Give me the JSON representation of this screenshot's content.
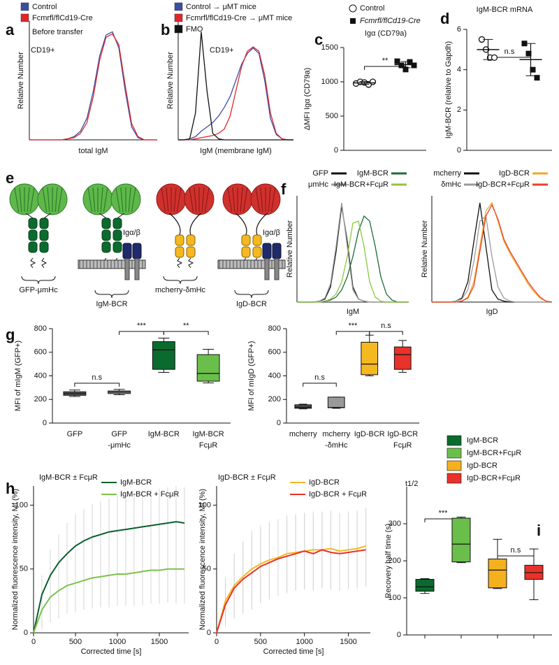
{
  "chart_data": [
    {
      "panel": "a",
      "type": "line",
      "xlabel": "total IgM",
      "ylabel": "Relative Number",
      "annotations": [
        "Before transfer",
        "CD19+"
      ],
      "xlim": [
        0,
        100
      ],
      "ylim": [
        0,
        110
      ],
      "x": [
        0,
        5,
        10,
        15,
        20,
        25,
        30,
        35,
        40,
        45,
        50,
        55,
        60,
        65,
        70,
        75,
        80,
        85,
        90,
        95,
        100
      ],
      "series": [
        {
          "name": "Control",
          "color": "#3a4fa3",
          "values": [
            0,
            0,
            0,
            0,
            0,
            0,
            1,
            3,
            8,
            20,
            45,
            78,
            97,
            100,
            85,
            45,
            12,
            2,
            0,
            0,
            0
          ]
        },
        {
          "name": "Fcmrfl/flCd19-Cre",
          "color": "#e0262b",
          "values": [
            0,
            0,
            0,
            0,
            0,
            0,
            1,
            2,
            6,
            16,
            40,
            74,
            95,
            98,
            88,
            50,
            15,
            3,
            0,
            0,
            0
          ]
        }
      ]
    },
    {
      "panel": "b",
      "type": "line",
      "xlabel": "IgM (membrane IgM)",
      "ylabel": "Relative Number",
      "annotations": [
        "CD19+"
      ],
      "xlim": [
        0,
        100
      ],
      "ylim": [
        0,
        110
      ],
      "x": [
        0,
        5,
        10,
        15,
        20,
        25,
        30,
        35,
        40,
        45,
        50,
        55,
        60,
        65,
        70,
        75,
        80,
        85,
        90,
        95,
        100
      ],
      "series": [
        {
          "name": "Control → μMT mice",
          "color": "#3a4fa3",
          "values": [
            0,
            0,
            1,
            3,
            8,
            12,
            16,
            22,
            30,
            40,
            55,
            70,
            80,
            85,
            80,
            55,
            20,
            5,
            1,
            0,
            0
          ]
        },
        {
          "name": "Fcmrfl/flCd19-Cre → μMT mice",
          "color": "#e0262b",
          "values": [
            0,
            0,
            0,
            1,
            2,
            3,
            4,
            6,
            10,
            22,
            45,
            68,
            82,
            86,
            82,
            60,
            25,
            6,
            1,
            0,
            0
          ]
        },
        {
          "name": "FMO",
          "color": "#111111",
          "values": [
            0,
            0,
            1,
            25,
            100,
            45,
            6,
            1,
            0,
            0,
            0,
            0,
            0,
            0,
            0,
            0,
            0,
            0,
            0,
            0,
            0
          ]
        }
      ]
    },
    {
      "panel": "c",
      "type": "dot",
      "title": "Igα (CD79a)",
      "ylabel": "ΔMFI Igα (CD79a)",
      "annotations": [
        "**"
      ],
      "ylim": [
        0,
        1500
      ],
      "yticks": [
        0,
        500,
        1000,
        1500
      ],
      "series": [
        {
          "name": "Control",
          "marker": "circle-open",
          "color": "#111111",
          "values": [
            975,
            1000,
            990,
            960,
            1000
          ],
          "mean": 985,
          "sd": 20
        },
        {
          "name": "Fcmrfl/flCd19-Cre",
          "marker": "square",
          "color": "#111111",
          "values": [
            1300,
            1240,
            1180,
            1290,
            1240
          ],
          "mean": 1250,
          "sd": 45
        }
      ]
    },
    {
      "panel": "d",
      "type": "dot",
      "title": "IgM-BCR mRNA",
      "ylabel": "IgM-BCR (relative to Gapdh)",
      "annotations": [
        "n.s"
      ],
      "ylim": [
        0,
        6
      ],
      "yticks": [
        0,
        2,
        4,
        6
      ],
      "series": [
        {
          "marker": "circle-open",
          "color": "#111111",
          "values": [
            5.5,
            5.0,
            4.6,
            4.6
          ],
          "mean": 5.0,
          "sd": 0.5
        },
        {
          "marker": "square",
          "color": "#111111",
          "values": [
            5.3,
            4.8,
            4.0,
            3.6
          ],
          "mean": 4.5,
          "sd": 0.8
        }
      ]
    },
    {
      "panel": "f",
      "type": "line",
      "xlabel": "IgM",
      "ylabel": "Relative Number",
      "xlim": [
        0,
        100
      ],
      "ylim": [
        0,
        105
      ],
      "x": [
        0,
        5,
        10,
        15,
        20,
        25,
        30,
        35,
        40,
        45,
        50,
        55,
        60,
        65,
        70,
        75,
        80,
        85,
        90,
        95,
        100
      ],
      "series": [
        {
          "name": "GFP",
          "color": "#111111",
          "values": [
            0,
            0,
            0,
            0,
            1,
            3,
            15,
            50,
            95,
            60,
            15,
            3,
            1,
            0,
            0,
            0,
            0,
            0,
            0,
            0,
            0
          ]
        },
        {
          "name": "μmHc",
          "color": "#9a9a9a",
          "values": [
            0,
            0,
            0,
            0,
            1,
            4,
            18,
            55,
            98,
            55,
            12,
            3,
            1,
            0,
            0,
            0,
            0,
            0,
            0,
            0,
            0
          ]
        },
        {
          "name": "IgM-BCR",
          "color": "#1d6b3a",
          "values": [
            0,
            0,
            0,
            0,
            0,
            1,
            2,
            5,
            12,
            25,
            45,
            70,
            85,
            80,
            55,
            25,
            8,
            2,
            0,
            0,
            0
          ]
        },
        {
          "name": "IgM-BCR+FcμR",
          "color": "#8cc63f",
          "values": [
            0,
            0,
            0,
            0,
            0,
            1,
            3,
            8,
            20,
            45,
            78,
            80,
            55,
            20,
            5,
            1,
            0,
            0,
            0,
            0,
            0
          ]
        }
      ]
    },
    {
      "type": "line",
      "xlabel": "IgD",
      "ylabel": "Relative Number",
      "xlim": [
        0,
        100
      ],
      "ylim": [
        0,
        105
      ],
      "x": [
        0,
        5,
        10,
        15,
        20,
        25,
        30,
        35,
        40,
        45,
        50,
        55,
        60,
        65,
        70,
        75,
        80,
        85,
        90,
        95,
        100
      ],
      "series": [
        {
          "name": "mcherry",
          "color": "#111111",
          "values": [
            0,
            0,
            0,
            0,
            1,
            4,
            20,
            60,
            98,
            55,
            12,
            3,
            1,
            0,
            0,
            0,
            0,
            0,
            0,
            0,
            0
          ]
        },
        {
          "name": "δmHc",
          "color": "#9a9a9a",
          "values": [
            0,
            0,
            0,
            0,
            1,
            3,
            12,
            40,
            80,
            85,
            45,
            15,
            4,
            1,
            0,
            0,
            0,
            0,
            0,
            0,
            0
          ]
        },
        {
          "name": "IgD-BCR",
          "color": "#f5a623",
          "values": [
            0,
            0,
            0,
            0,
            0,
            1,
            5,
            20,
            55,
            90,
            98,
            80,
            60,
            48,
            38,
            28,
            18,
            10,
            4,
            1,
            0
          ]
        },
        {
          "name": "IgD-BCR+FcμR",
          "color": "#e8422a",
          "values": [
            0,
            0,
            0,
            0,
            0,
            1,
            4,
            16,
            50,
            85,
            96,
            82,
            62,
            50,
            40,
            30,
            20,
            12,
            5,
            1,
            0
          ]
        }
      ]
    },
    {
      "panel": "g",
      "type": "box",
      "ylabel": "MFI of mIgM (GFP+)",
      "annotations": [
        "n.s",
        "***",
        "**"
      ],
      "ylim": [
        0,
        800
      ],
      "yticks": [
        0,
        200,
        400,
        600,
        800
      ],
      "categories": [
        [
          "GFP"
        ],
        [
          "GFP",
          "-μmHc"
        ],
        [
          "IgM-BCR"
        ],
        [
          "IgM-BCR",
          "FcμR"
        ]
      ],
      "boxes": [
        {
          "color": "#555555",
          "min": 225,
          "q1": 235,
          "median": 250,
          "q3": 265,
          "max": 280
        },
        {
          "color": "#999999",
          "min": 240,
          "q1": 250,
          "median": 262,
          "q3": 272,
          "max": 285
        },
        {
          "color": "#0b6b2e",
          "min": 430,
          "q1": 455,
          "median": 620,
          "q3": 690,
          "max": 720
        },
        {
          "color": "#6abf4b",
          "min": 340,
          "q1": 355,
          "median": 420,
          "q3": 580,
          "max": 625
        }
      ]
    },
    {
      "type": "box",
      "ylabel": "MFI of mIgD (GFP+)",
      "annotations": [
        "n.s",
        "***",
        "n.s"
      ],
      "ylim": [
        0,
        800
      ],
      "yticks": [
        0,
        200,
        400,
        600,
        800
      ],
      "categories": [
        [
          "mcherry"
        ],
        [
          "mcherry",
          "-δmHc"
        ],
        [
          "IgD-BCR"
        ],
        [
          "IgD-BCR",
          "FcμR"
        ]
      ],
      "boxes": [
        {
          "color": "#555555",
          "min": 120,
          "q1": 125,
          "median": 135,
          "q3": 155,
          "max": 160
        },
        {
          "color": "#999999",
          "min": 125,
          "q1": 130,
          "median": 132,
          "q3": 220,
          "max": 220
        },
        {
          "color": "#f5b820",
          "min": 400,
          "q1": 410,
          "median": 500,
          "q3": 685,
          "max": 745
        },
        {
          "color": "#e8322a",
          "min": 430,
          "q1": 455,
          "median": 580,
          "q3": 645,
          "max": 700
        }
      ]
    },
    {
      "panel": "h",
      "type": "line",
      "title": "IgM-BCR ± FcμR",
      "xlabel": "Corrected time [s]",
      "ylabel": "Normalized fluorescence intensity, Mf (%)",
      "xlim": [
        0,
        1850
      ],
      "ylim": [
        0,
        115
      ],
      "xticks": [
        0,
        500,
        1000,
        1500
      ],
      "yticks": [
        0,
        50,
        100
      ],
      "x": [
        0,
        100,
        200,
        300,
        400,
        500,
        600,
        700,
        800,
        900,
        1000,
        1100,
        1200,
        1300,
        1400,
        1500,
        1600,
        1700,
        1800
      ],
      "series": [
        {
          "name": "IgM-BCR",
          "color": "#0b5e2c",
          "values": [
            0,
            30,
            45,
            55,
            62,
            68,
            72,
            75,
            77,
            79,
            80,
            81,
            82,
            83,
            84,
            85,
            86,
            87,
            86
          ],
          "errors": [
            0,
            15,
            20,
            22,
            24,
            25,
            25,
            26,
            26,
            26,
            27,
            27,
            27,
            28,
            28,
            28,
            28,
            28,
            28
          ]
        },
        {
          "name": "IgM-BCR + FcμR",
          "color": "#7cc24a",
          "values": [
            0,
            18,
            28,
            33,
            37,
            39,
            41,
            43,
            44,
            45,
            46,
            46,
            47,
            48,
            49,
            49,
            50,
            50,
            50
          ],
          "errors": [
            0,
            15,
            20,
            22,
            22,
            23,
            23,
            24,
            24,
            25,
            25,
            25,
            26,
            26,
            26,
            26,
            26,
            27,
            27
          ]
        }
      ]
    },
    {
      "type": "line",
      "title": "IgD-BCR ± FcμR",
      "xlabel": "Corrected time [s]",
      "ylabel": "Normalized fluorescence intensity, Mf (%)",
      "xlim": [
        0,
        1750
      ],
      "ylim": [
        0,
        115
      ],
      "xticks": [
        0,
        500,
        1000,
        1500
      ],
      "yticks": [
        0,
        50,
        100
      ],
      "x": [
        0,
        100,
        200,
        300,
        400,
        500,
        600,
        700,
        800,
        900,
        1000,
        1100,
        1200,
        1300,
        1400,
        1500,
        1600,
        1700
      ],
      "series": [
        {
          "name": "IgD-BCR",
          "color": "#f5b820",
          "values": [
            0,
            25,
            37,
            44,
            50,
            54,
            57,
            59,
            62,
            63,
            64,
            65,
            65,
            66,
            64,
            65,
            66,
            68
          ],
          "errors": [
            0,
            18,
            25,
            28,
            30,
            30,
            30,
            30,
            30,
            30,
            30,
            30,
            30,
            30,
            30,
            30,
            30,
            30
          ]
        },
        {
          "name": "IgD-BCR + FcμR",
          "color": "#e8322a",
          "values": [
            0,
            22,
            35,
            42,
            47,
            52,
            55,
            58,
            60,
            62,
            64,
            62,
            65,
            63,
            62,
            63,
            64,
            65
          ],
          "errors": [
            0,
            17,
            24,
            27,
            29,
            29,
            29,
            29,
            29,
            29,
            29,
            29,
            29,
            29,
            29,
            29,
            29,
            29
          ]
        }
      ]
    },
    {
      "panel": "i",
      "type": "box",
      "title": "t1/2",
      "ylabel": "Recovery half time (s)",
      "annotations": [
        "***",
        "n.s"
      ],
      "ylim": [
        0,
        400
      ],
      "yticks": [
        0,
        100,
        200,
        300
      ],
      "series": [
        {
          "name": "IgM-BCR",
          "color": "#0b6b2e",
          "min": 112,
          "q1": 118,
          "median": 130,
          "q3": 150,
          "max": 152
        },
        {
          "name": "IgM-BCR+FcμR",
          "color": "#6abf4b",
          "min": 195,
          "q1": 197,
          "median": 245,
          "q3": 315,
          "max": 318
        },
        {
          "name": "IgD-BCR",
          "color": "#f5b01e",
          "min": 125,
          "q1": 127,
          "median": 175,
          "q3": 205,
          "max": 258
        },
        {
          "name": "IgD-BCR+FcμR",
          "color": "#e8322a",
          "min": 95,
          "q1": 150,
          "median": 168,
          "q3": 188,
          "max": 232
        }
      ]
    }
  ],
  "diagram": {
    "panel": "e",
    "labels": [
      "GFP-μmHc",
      "IgM-BCR",
      "mcherry-δmHc",
      "IgD-BCR"
    ],
    "coreceptor": [
      "Igα/β",
      "Igα/β"
    ]
  }
}
